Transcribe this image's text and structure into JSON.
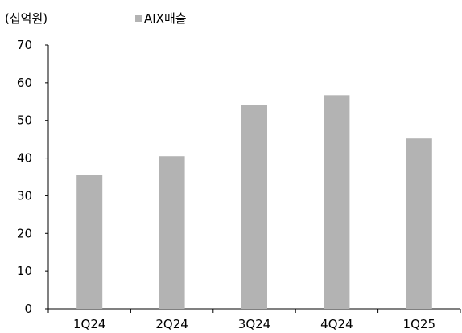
{
  "chart_data": {
    "type": "bar",
    "unit_label": "(십억원)",
    "categories": [
      "1Q24",
      "2Q24",
      "3Q24",
      "4Q24",
      "1Q25"
    ],
    "series": [
      {
        "name": "AIX매출",
        "values": [
          35.5,
          40.5,
          54.0,
          56.7,
          45.2
        ]
      }
    ],
    "ylim": [
      0,
      70
    ],
    "yticks": [
      "0",
      "10",
      "20",
      "30",
      "40",
      "50",
      "60",
      "70"
    ],
    "grid": false,
    "legend_position": "top",
    "bar_color": "#b3b3b3"
  }
}
